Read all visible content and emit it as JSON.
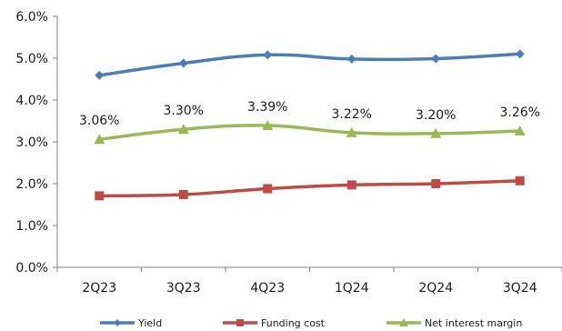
{
  "chart_data": {
    "type": "line",
    "categories": [
      "2Q23",
      "3Q23",
      "4Q23",
      "1Q24",
      "2Q24",
      "3Q24"
    ],
    "ylim": [
      0,
      6
    ],
    "yticks": [
      0,
      1,
      2,
      3,
      4,
      5,
      6
    ],
    "ytick_labels": [
      "0.0%",
      "1.0%",
      "2.0%",
      "3.0%",
      "4.0%",
      "5.0%",
      "6.0%"
    ],
    "grid": false,
    "legend_position": "bottom",
    "series": [
      {
        "name": "Yield",
        "color": "#4a7ebb",
        "marker": "diamond",
        "values": [
          4.59,
          4.88,
          5.08,
          4.98,
          4.99,
          5.1
        ]
      },
      {
        "name": "Funding cost",
        "color": "#be4b48",
        "marker": "square",
        "values": [
          1.71,
          1.74,
          1.88,
          1.97,
          2.0,
          2.07
        ]
      },
      {
        "name": "Net interest margin",
        "color": "#98b954",
        "marker": "triangle",
        "values": [
          3.06,
          3.3,
          3.39,
          3.22,
          3.2,
          3.26
        ],
        "data_labels": [
          "3.06%",
          "3.30%",
          "3.39%",
          "3.22%",
          "3.20%",
          "3.26%"
        ]
      }
    ]
  }
}
